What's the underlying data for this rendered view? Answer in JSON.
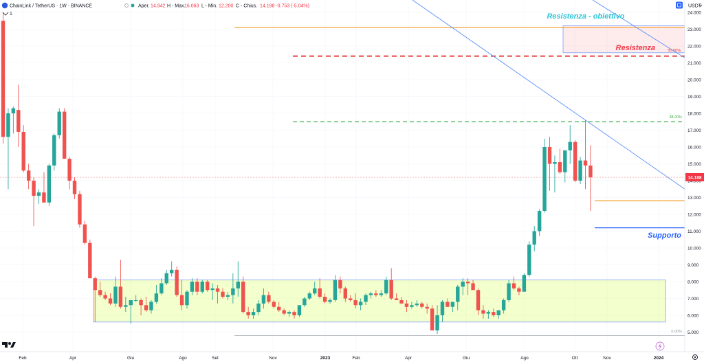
{
  "header": {
    "pair": "ChainLink / TetherUS · 1W · BINANCE",
    "open_label": "Aper.",
    "open_value": "14.942",
    "high_label": "H - Max.",
    "high_value": "16.063",
    "low_label": "L - Min.",
    "low_value": "12.200",
    "close_label": "C - Chius.",
    "close_value": "14.188 -0.753 (-5.04%)",
    "interval_badge": "1",
    "currency": "USDT"
  },
  "price_badge": "14.188",
  "icons": {
    "chart_settings": "square-icon",
    "layout_toggle": "chevron-icon",
    "logo": "tradingview-logo-icon",
    "goto_realtime": "lightning-icon",
    "settings": "gear-icon"
  },
  "colors": {
    "up": "#26a69a",
    "down": "#ef5350",
    "resistance_fill": "rgba(242,54,69,0.10)",
    "support_fill": "rgba(224,255,128,0.40)",
    "trendline": "#5b8ff9",
    "annot_cyan": "#2ec4d6",
    "annot_red": "#f23645",
    "annot_blue": "#2962ff"
  },
  "annotations": {
    "resistance_target": "Resistenza - obiettivo",
    "resistance": "Resistenza",
    "support": "Supporto",
    "fib_50": "50.00%",
    "fib_38": "38.20%",
    "fib_0": "0.00%"
  },
  "chart_data": {
    "type": "candlestick",
    "title": "ChainLink / TetherUS · 1W · BINANCE",
    "ylim": [
      4.7,
      24.3
    ],
    "y_ticks": [
      "5.000",
      "6.000",
      "7.000",
      "8.000",
      "9.000",
      "10.000",
      "11.000",
      "12.000",
      "13.000",
      "14.000",
      "15.000",
      "16.000",
      "17.000",
      "18.000",
      "19.000",
      "20.000",
      "21.000",
      "22.000",
      "23.000",
      "24.000"
    ],
    "x_ticks": [
      "Feb",
      "Apr",
      "Giu",
      "Ago",
      "Set",
      "Nov",
      "2023",
      "Feb",
      "Apr",
      "Giu",
      "Ago",
      "Ott",
      "Nov",
      "2024"
    ],
    "levels": {
      "orange_top": 23.1,
      "resistance_dashed": 21.4,
      "fib_38_dashed": 17.5,
      "orange_mid": 12.8,
      "support_line": 11.2,
      "fib_0": 4.8
    },
    "resistance_zone": [
      21.6,
      23.2
    ],
    "support_zone": [
      5.6,
      8.1
    ],
    "trendline": [
      [
        24.3,
        0.586
      ],
      [
        13.5,
        0.999
      ]
    ],
    "candles": [
      [
        23.5,
        24.0,
        16.2,
        16.6
      ],
      [
        16.6,
        18.3,
        13.5,
        18.0
      ],
      [
        18.0,
        18.4,
        16.8,
        18.3
      ],
      [
        18.2,
        19.7,
        16.0,
        16.9
      ],
      [
        16.9,
        17.3,
        14.5,
        14.6
      ],
      [
        14.6,
        15.0,
        13.5,
        14.0
      ],
      [
        14.0,
        14.2,
        11.3,
        13.1
      ],
      [
        13.1,
        13.5,
        12.6,
        13.3
      ],
      [
        13.3,
        14.5,
        12.8,
        12.7
      ],
      [
        12.7,
        15.0,
        12.5,
        14.9
      ],
      [
        14.9,
        16.8,
        14.6,
        16.7
      ],
      [
        16.7,
        18.3,
        16.5,
        18.1
      ],
      [
        18.1,
        18.3,
        15.4,
        15.3
      ],
      [
        15.3,
        15.4,
        13.5,
        14.0
      ],
      [
        14.0,
        14.2,
        12.9,
        13.2
      ],
      [
        13.2,
        13.4,
        11.2,
        11.4
      ],
      [
        11.4,
        11.6,
        10.2,
        10.3
      ],
      [
        10.3,
        10.5,
        8.2,
        8.2
      ],
      [
        8.2,
        8.3,
        5.6,
        7.5
      ],
      [
        7.5,
        8.0,
        7.1,
        7.2
      ],
      [
        7.2,
        7.4,
        6.9,
        7.0
      ],
      [
        7.0,
        7.3,
        6.6,
        6.7
      ],
      [
        6.7,
        8.3,
        6.5,
        7.7
      ],
      [
        7.7,
        9.3,
        6.4,
        6.5
      ],
      [
        6.5,
        7.1,
        6.2,
        6.6
      ],
      [
        6.6,
        6.9,
        5.5,
        6.9
      ],
      [
        6.9,
        7.2,
        6.8,
        6.9
      ],
      [
        6.9,
        7.0,
        6.0,
        6.6
      ],
      [
        6.6,
        7.1,
        6.2,
        6.3
      ],
      [
        6.3,
        6.9,
        6.1,
        6.8
      ],
      [
        6.8,
        7.8,
        6.7,
        7.3
      ],
      [
        7.3,
        8.2,
        7.2,
        7.9
      ],
      [
        7.9,
        8.7,
        7.8,
        8.5
      ],
      [
        8.5,
        9.2,
        8.3,
        8.7
      ],
      [
        8.7,
        8.9,
        7.1,
        7.2
      ],
      [
        7.2,
        8.1,
        6.3,
        6.6
      ],
      [
        6.6,
        7.5,
        6.4,
        7.4
      ],
      [
        7.4,
        8.2,
        7.2,
        8.0
      ],
      [
        8.0,
        8.2,
        7.2,
        7.4
      ],
      [
        7.4,
        8.1,
        7.3,
        8.0
      ],
      [
        8.0,
        8.1,
        7.4,
        7.5
      ],
      [
        7.5,
        7.9,
        6.9,
        7.6
      ],
      [
        7.6,
        7.8,
        6.7,
        7.4
      ],
      [
        7.4,
        7.6,
        7.0,
        7.1
      ],
      [
        7.1,
        7.4,
        6.9,
        7.2
      ],
      [
        7.2,
        8.5,
        6.7,
        7.6
      ],
      [
        7.6,
        9.2,
        7.1,
        8.0
      ],
      [
        8.0,
        8.3,
        6.1,
        6.2
      ],
      [
        6.2,
        6.5,
        5.8,
        6.0
      ],
      [
        6.0,
        6.4,
        5.8,
        6.2
      ],
      [
        6.2,
        6.9,
        6.0,
        6.7
      ],
      [
        6.7,
        7.6,
        6.4,
        7.2
      ],
      [
        7.2,
        7.4,
        6.7,
        6.8
      ],
      [
        6.8,
        6.9,
        6.4,
        6.5
      ],
      [
        6.5,
        6.8,
        6.2,
        6.3
      ],
      [
        6.3,
        6.4,
        6.0,
        6.1
      ],
      [
        6.1,
        6.3,
        5.9,
        6.2
      ],
      [
        6.2,
        6.3,
        5.8,
        6.0
      ],
      [
        6.0,
        6.6,
        5.9,
        6.6
      ],
      [
        6.6,
        7.1,
        6.5,
        7.0
      ],
      [
        7.0,
        7.4,
        6.9,
        7.3
      ],
      [
        7.3,
        8.0,
        7.2,
        7.6
      ],
      [
        7.6,
        8.2,
        7.0,
        7.1
      ],
      [
        7.1,
        7.3,
        6.7,
        6.8
      ],
      [
        6.8,
        7.0,
        6.7,
        6.9
      ],
      [
        6.9,
        8.4,
        6.8,
        8.1
      ],
      [
        8.1,
        8.3,
        7.3,
        7.6
      ],
      [
        7.6,
        7.7,
        6.8,
        7.0
      ],
      [
        7.0,
        7.2,
        6.8,
        6.9
      ],
      [
        6.9,
        7.3,
        6.4,
        6.6
      ],
      [
        6.6,
        7.0,
        6.3,
        6.8
      ],
      [
        6.8,
        7.3,
        6.6,
        7.2
      ],
      [
        7.2,
        7.4,
        7.0,
        7.3
      ],
      [
        7.3,
        7.5,
        7.1,
        7.2
      ],
      [
        7.2,
        7.5,
        7.1,
        7.3
      ],
      [
        7.3,
        8.3,
        7.2,
        8.1
      ],
      [
        8.1,
        8.8,
        6.9,
        7.0
      ],
      [
        7.0,
        7.3,
        6.9,
        6.9
      ],
      [
        6.9,
        7.1,
        6.8,
        6.7
      ],
      [
        6.7,
        6.9,
        6.2,
        6.5
      ],
      [
        6.5,
        6.8,
        6.4,
        6.6
      ],
      [
        6.6,
        6.9,
        6.5,
        6.7
      ],
      [
        6.7,
        6.8,
        6.4,
        6.5
      ],
      [
        6.5,
        6.7,
        6.1,
        6.4
      ],
      [
        6.4,
        6.6,
        5.2,
        5.1
      ],
      [
        5.1,
        6.6,
        4.9,
        6.0
      ],
      [
        6.0,
        6.9,
        5.6,
        6.8
      ],
      [
        6.8,
        7.0,
        6.5,
        6.5
      ],
      [
        6.5,
        6.7,
        6.2,
        6.8
      ],
      [
        6.8,
        7.8,
        6.3,
        7.7
      ],
      [
        7.7,
        8.2,
        7.2,
        8.0
      ],
      [
        8.0,
        8.2,
        7.2,
        7.9
      ],
      [
        7.9,
        8.1,
        7.5,
        7.5
      ],
      [
        7.5,
        7.6,
        6.0,
        6.3
      ],
      [
        6.3,
        6.6,
        5.8,
        6.1
      ],
      [
        6.1,
        6.3,
        5.8,
        6.2
      ],
      [
        6.2,
        6.4,
        5.9,
        6.0
      ],
      [
        6.0,
        6.3,
        5.8,
        6.3
      ],
      [
        6.3,
        7.0,
        6.1,
        6.9
      ],
      [
        6.9,
        8.1,
        6.8,
        7.9
      ],
      [
        7.9,
        8.3,
        7.5,
        7.6
      ],
      [
        7.6,
        7.7,
        7.2,
        7.4
      ],
      [
        7.4,
        8.5,
        7.4,
        8.4
      ],
      [
        8.4,
        10.4,
        8.3,
        10.2
      ],
      [
        10.2,
        11.3,
        9.8,
        11.0
      ],
      [
        11.0,
        12.3,
        10.7,
        12.2
      ],
      [
        12.2,
        16.5,
        12.1,
        16.0
      ],
      [
        16.0,
        16.6,
        13.4,
        15.0
      ],
      [
        15.0,
        15.5,
        13.3,
        15.1
      ],
      [
        15.1,
        15.9,
        14.4,
        14.5
      ],
      [
        14.5,
        15.8,
        13.9,
        15.8
      ],
      [
        15.8,
        17.3,
        15.0,
        16.3
      ],
      [
        16.3,
        16.4,
        13.9,
        14.0
      ],
      [
        14.0,
        15.4,
        13.8,
        15.2
      ],
      [
        15.2,
        17.6,
        13.5,
        14.9
      ],
      [
        14.9,
        16.1,
        12.2,
        14.2
      ]
    ]
  }
}
